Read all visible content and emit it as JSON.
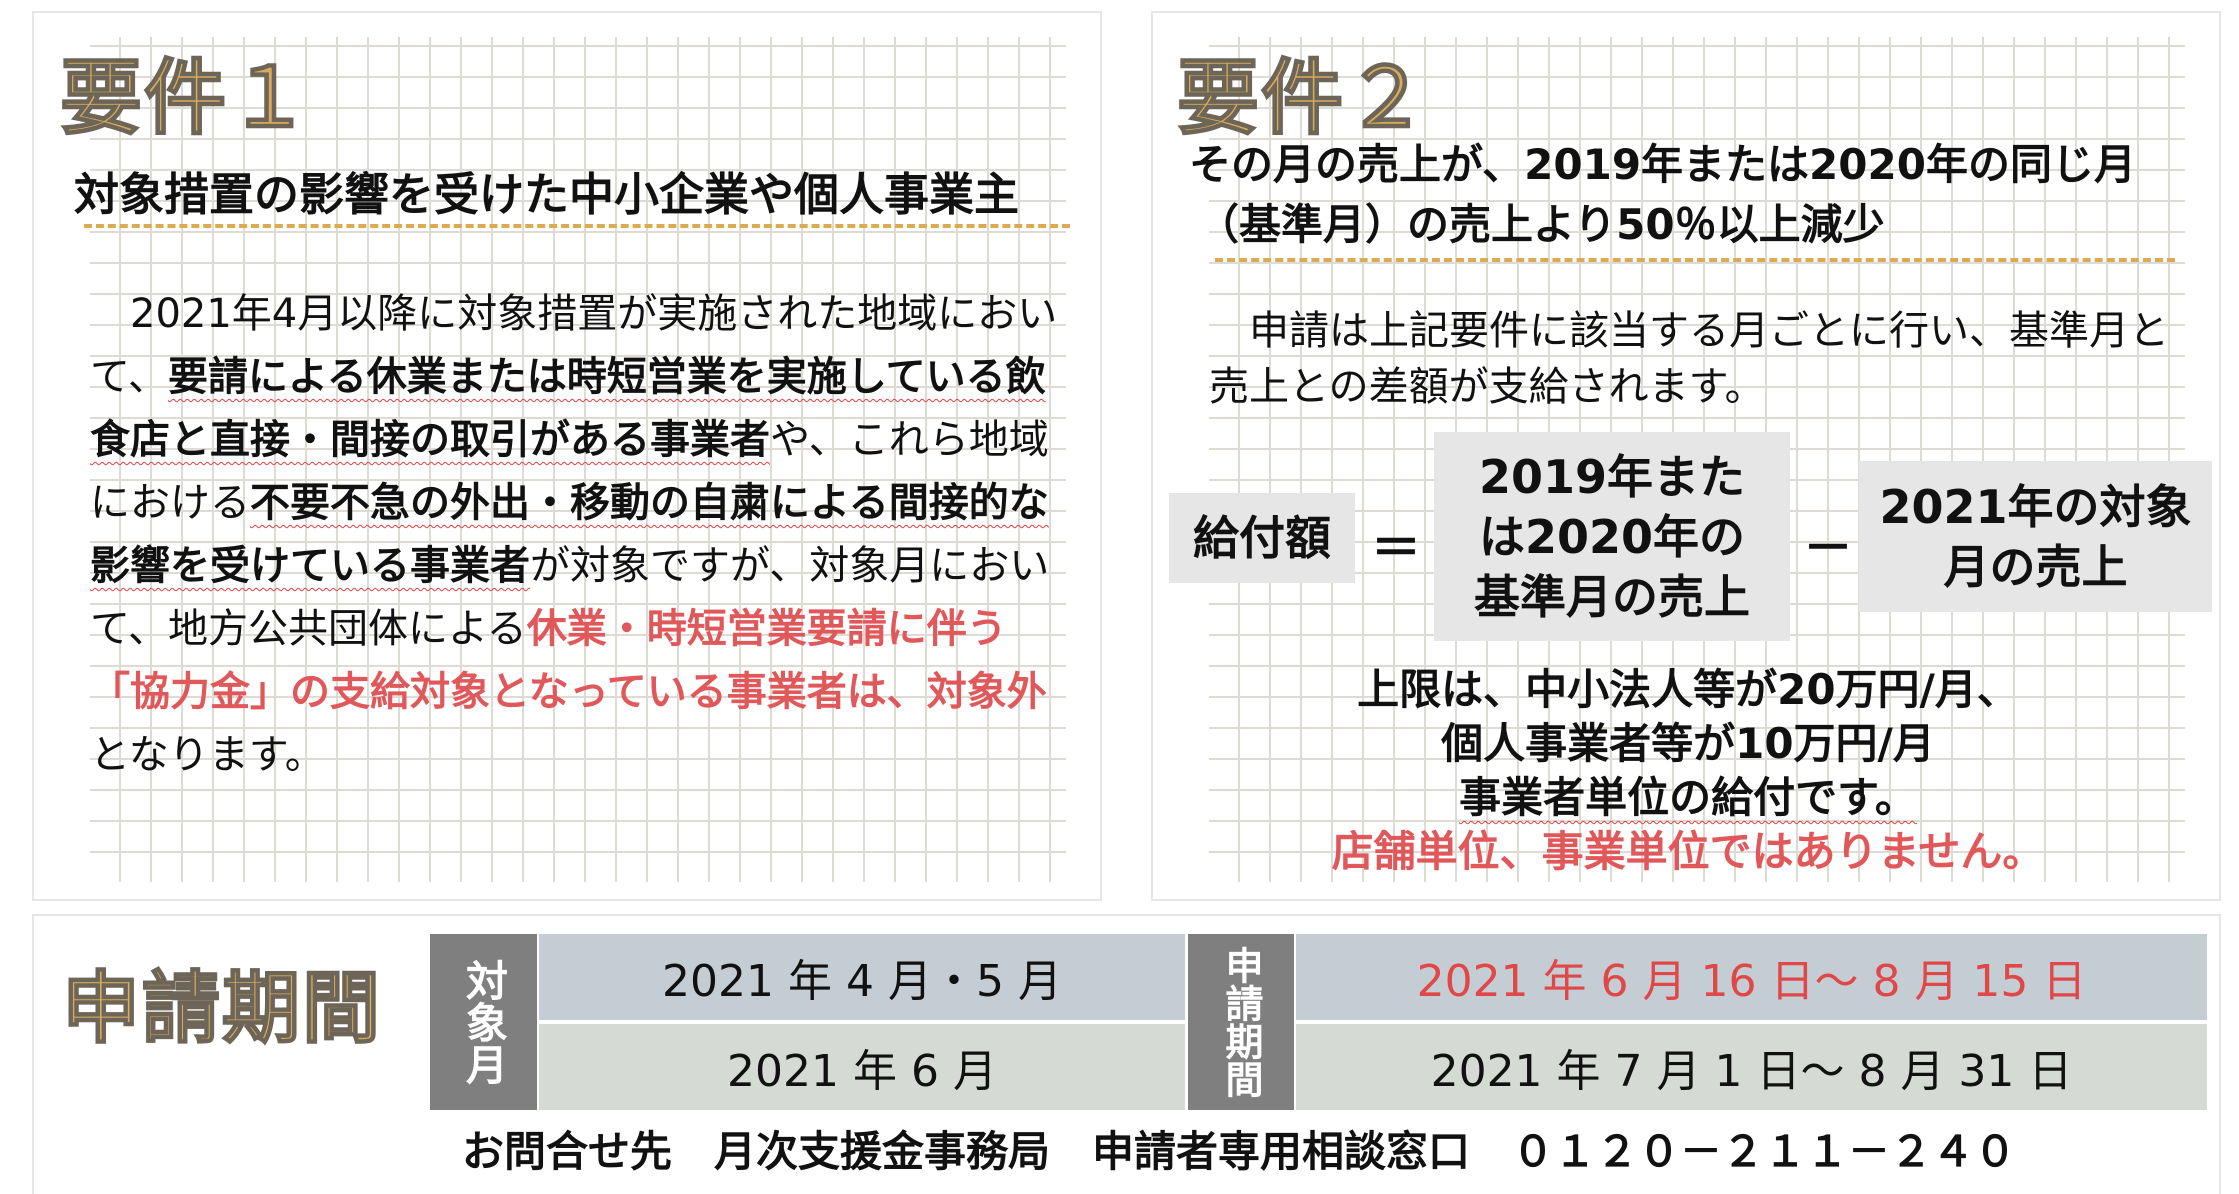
{
  "req1": {
    "title": "要件１",
    "subtitle": "対象措置の影響を受けた中小企業や個人事業主",
    "body": {
      "p1": "　2021年4月以降に対象措置が実施された地域において、",
      "b1": "要請による休業または時短営業を実施している飲食店と直接・間接の取引がある事業者",
      "p2": "や、これら地域における",
      "b2": "不要不急の外出・移動の自粛による間接的な影響を受けている事業者",
      "p3": "が対象ですが、対象月において、地方公共団体による",
      "r1": "休業・時短営業要請に伴う「協力金」の支給対象となっている事業者は、対象外",
      "p4": "となります。"
    }
  },
  "req2": {
    "title": "要件２",
    "subtitle_line1": "その月の売上が、2019年または2020年の同じ月",
    "subtitle_line2": "（基準月）の売上より50％以上減少",
    "body": "　申請は上記要件に該当する月ごとに行い、基準月と売上との差額が支給されます。",
    "formula": {
      "lhs": "給付額",
      "equals": "＝",
      "term1": "2019年または2020年の基準月の売上",
      "minus": "－",
      "term2": "2021年の対象月の売上"
    },
    "limit_lines": [
      "上限は、中小法人等が20万円/月、",
      "個人事業者等が10万円/月",
      "事業者単位の給付です。"
    ],
    "note": "店舗単位、事業単位ではありません。"
  },
  "period": {
    "title": "申請期間",
    "target_header": "対象月",
    "period_header": "申請期間",
    "rows": [
      {
        "target": "2021 年 4 月・5 月",
        "period": "2021 年 6 月 16 日～ 8 月 15 日"
      },
      {
        "target": "2021 年 6 月",
        "period": "2021 年 7 月 1 日～ 8 月 31 日"
      }
    ],
    "contact": "お問合せ先　月次支援金事務局　申請者専用相談窓口　０１２０－２１１－２４０"
  },
  "colors": {
    "gold": "#d8ac5c",
    "red": "#e0585a",
    "row1": "#c5cdd4",
    "row2": "#d6dad5",
    "header": "#7f7f7f"
  }
}
